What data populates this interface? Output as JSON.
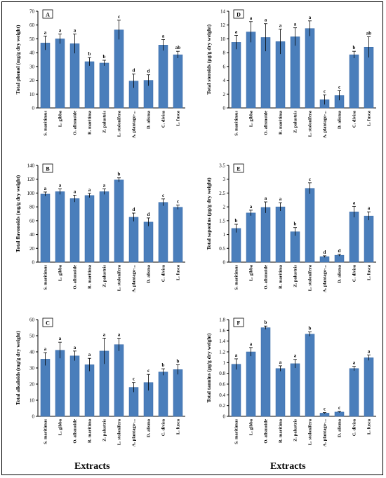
{
  "colors": {
    "bar": "#4a7ebb",
    "bar_edge": "#3a6aa6",
    "axis": "#000000",
    "text": "#000000"
  },
  "footer": {
    "left_label": "Extracts",
    "right_label": "Extracts"
  },
  "chart_data": [
    {
      "panel": "A",
      "type": "bar",
      "ylabel": "Total phenol (mg/g dry weight)",
      "ylim": [
        0,
        70
      ],
      "yticks": [
        0,
        10,
        20,
        30,
        40,
        50,
        60,
        70
      ],
      "categories": [
        "S. maritimus",
        "L. gibba",
        "O. alismoide",
        "R. maritima",
        "Z. palustris",
        "L. stolonifera",
        "A. plantago-...",
        "D. alisma",
        "C. divisa",
        "L. fusca"
      ],
      "values": [
        47,
        50,
        46.5,
        33.5,
        32.5,
        56.5,
        19.5,
        20,
        45.5,
        38.5
      ],
      "errors": [
        5,
        3.5,
        7,
        3,
        2,
        7,
        5,
        4,
        4,
        2.5
      ],
      "letters": [
        "a",
        "a",
        "a",
        "b",
        "b",
        "c",
        "d",
        "d",
        "a",
        "ab"
      ]
    },
    {
      "panel": "D",
      "type": "bar",
      "ylabel": "Total steroids (µg/g dry weight)",
      "ylim": [
        0,
        14
      ],
      "yticks": [
        0,
        2,
        4,
        6,
        8,
        10,
        12,
        14
      ],
      "categories": [
        "S. maritimus",
        "L. gibba",
        "O. alismoide",
        "R. maritima",
        "Z. palustris",
        "L. stolonifera",
        "A. plantago-...",
        "D. alisma",
        "C. divisa",
        "L. fusca"
      ],
      "values": [
        9.5,
        11,
        10.2,
        9.6,
        10.3,
        11.5,
        1.2,
        1.8,
        7.7,
        8.8
      ],
      "errors": [
        1,
        1.5,
        2,
        1.8,
        1.3,
        1.1,
        0.7,
        0.7,
        0.5,
        1.5
      ],
      "letters": [
        "a",
        "a",
        "a",
        "a",
        "a",
        "a",
        "c",
        "c",
        "b",
        "ab"
      ]
    },
    {
      "panel": "B",
      "type": "bar",
      "ylabel": "Total flavonoids (mg/g dry weight)",
      "ylim": [
        0,
        140
      ],
      "yticks": [
        0,
        20,
        40,
        60,
        80,
        100,
        120,
        140
      ],
      "categories": [
        "S. maritimus",
        "L. gibba",
        "O. alismoide",
        "R. maritima",
        "Z. palustris",
        "L. stolonifera",
        "A. plantago-...",
        "D. alisma",
        "C. divisa",
        "L. fusca"
      ],
      "values": [
        98.5,
        102,
        92,
        96.5,
        102,
        119,
        65,
        58,
        86.5,
        79.5
      ],
      "errors": [
        3,
        4,
        5,
        3,
        4,
        3,
        6,
        6,
        5,
        3
      ],
      "letters": [
        "a",
        "a",
        "a",
        "a",
        "a",
        "b",
        "d",
        "d",
        "c",
        "c"
      ]
    },
    {
      "panel": "E",
      "type": "bar",
      "ylabel": "Total saponins (µg/g dry weight)",
      "ylim": [
        0,
        3.5
      ],
      "yticks": [
        0,
        0.5,
        1,
        1.5,
        2,
        2.5,
        3,
        3.5
      ],
      "categories": [
        "S. maritimus",
        "L. gibba",
        "O. alismoide",
        "R. maritima",
        "Z. palustris",
        "L. stolonifera",
        "A. plantago-...",
        "D. alisma",
        "C. divisa",
        "L. fusca"
      ],
      "values": [
        1.22,
        1.78,
        1.98,
        2,
        1.1,
        2.67,
        0.2,
        0.25,
        1.82,
        1.67
      ],
      "errors": [
        0.15,
        0.1,
        0.2,
        0.15,
        0.15,
        0.2,
        0.03,
        0.03,
        0.2,
        0.15
      ],
      "letters": [
        "b",
        "a",
        "a",
        "a",
        "b",
        "c",
        "d",
        "d",
        "a",
        "a"
      ]
    },
    {
      "panel": "C",
      "type": "bar",
      "ylabel": "Total alkaloids (mg/g dry weight)",
      "ylim": [
        0,
        60
      ],
      "yticks": [
        0,
        10,
        20,
        30,
        40,
        50,
        60
      ],
      "categories": [
        "S. maritimus",
        "L. gibba",
        "O. alismoide",
        "R. maritima",
        "Z. palustris",
        "L. stolonifera",
        "A. plantago-...",
        "D. alisma",
        "C. divisa",
        "L. fusca"
      ],
      "values": [
        35.5,
        41,
        37.5,
        32,
        40.5,
        44.5,
        18,
        21,
        27.5,
        29
      ],
      "errors": [
        4,
        5,
        3,
        4,
        8,
        4,
        3,
        5,
        2,
        3
      ],
      "letters": [
        "a",
        "a",
        "a",
        "a",
        "a",
        "a",
        "c",
        "c",
        "b",
        "b"
      ]
    },
    {
      "panel": "F",
      "type": "bar",
      "ylabel": "Total tannins (µg/g dry weight)",
      "ylim": [
        0,
        1.8
      ],
      "yticks": [
        0,
        0.2,
        0.4,
        0.6,
        0.8,
        1,
        1.2,
        1.4,
        1.6,
        1.8
      ],
      "categories": [
        "S. maritimus",
        "L. gibba",
        "O. alismoide",
        "R. maritima",
        "Z. palustris",
        "L. stolonifera",
        "A. plantago-...",
        "D. alisma",
        "C. divisa",
        "L. fusca"
      ],
      "values": [
        0.97,
        1.2,
        1.65,
        0.89,
        0.98,
        1.53,
        0.06,
        0.08,
        0.89,
        1.09
      ],
      "errors": [
        0.1,
        0.08,
        0.03,
        0.05,
        0.08,
        0.04,
        0.01,
        0.01,
        0.04,
        0.05
      ],
      "letters": [
        "a",
        "a",
        "b",
        "a",
        "a",
        "b",
        "c",
        "c",
        "a",
        "a"
      ]
    }
  ]
}
